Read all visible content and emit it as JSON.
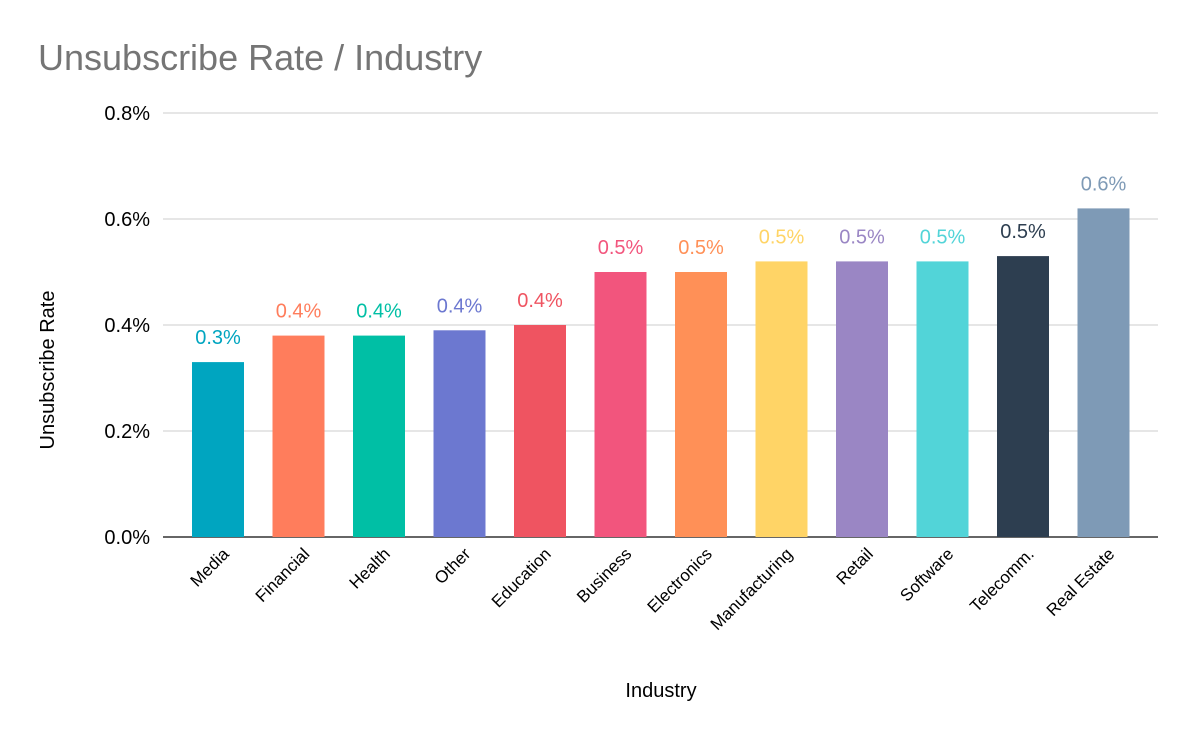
{
  "chart_data": {
    "type": "bar",
    "title": "Unsubscribe Rate / Industry",
    "xlabel": "Industry",
    "ylabel": "Unsubscribe Rate",
    "ylim": [
      0,
      0.8
    ],
    "yticks": [
      "0.0%",
      "0.2%",
      "0.4%",
      "0.6%",
      "0.8%"
    ],
    "grid": true,
    "categories": [
      "Media",
      "Financial",
      "Health",
      "Other",
      "Education",
      "Business",
      "Electronics",
      "Manufacturing",
      "Retail",
      "Software",
      "Telecomm.",
      "Real Estate"
    ],
    "values": [
      0.33,
      0.38,
      0.38,
      0.39,
      0.4,
      0.5,
      0.5,
      0.52,
      0.52,
      0.52,
      0.53,
      0.62
    ],
    "data_labels": [
      "0.3%",
      "0.4%",
      "0.4%",
      "0.4%",
      "0.4%",
      "0.5%",
      "0.5%",
      "0.5%",
      "0.5%",
      "0.5%",
      "0.5%",
      "0.6%"
    ],
    "colors": [
      "#00a5c0",
      "#ff7d5c",
      "#00bfa5",
      "#6c78d0",
      "#ef5461",
      "#f2557d",
      "#ff9057",
      "#ffd466",
      "#9a86c4",
      "#52d4d8",
      "#2d3e50",
      "#7e9ab6"
    ]
  }
}
